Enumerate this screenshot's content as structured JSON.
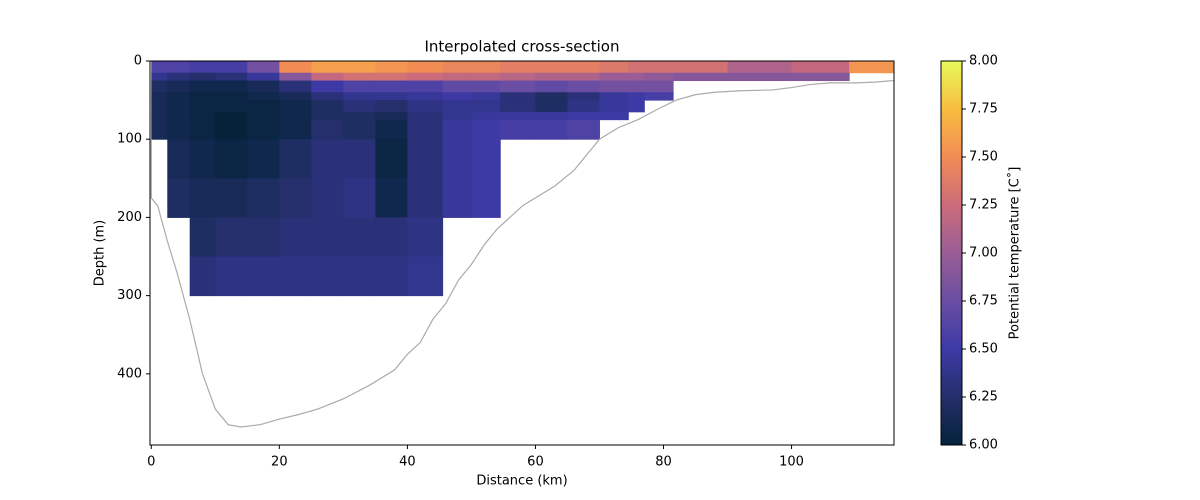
{
  "chart_data": {
    "type": "heatmap",
    "title": "Interpolated cross-section",
    "x_label": "Distance (km)",
    "y_label": "Depth (m)",
    "x_edges": [
      0,
      2.5,
      6,
      10,
      15,
      20,
      25,
      30,
      35,
      40,
      45.5,
      50,
      54.5,
      60,
      65,
      70,
      74.5,
      77,
      81.5,
      90,
      100,
      109,
      116
    ],
    "y_edges": [
      0,
      15,
      25,
      40,
      50,
      65,
      75,
      100,
      150,
      200,
      250,
      300
    ],
    "values": [
      [
        6.6,
        6.6,
        6.55,
        6.55,
        6.8,
        7.5,
        7.6,
        7.6,
        7.55,
        7.5,
        7.45,
        7.45,
        7.4,
        7.4,
        7.4,
        7.35,
        7.3,
        7.3,
        7.3,
        7.1,
        7.2,
        7.55
      ],
      [
        6.4,
        6.3,
        6.25,
        6.3,
        6.45,
        6.9,
        7.2,
        7.3,
        7.3,
        7.25,
        7.2,
        7.2,
        7.15,
        7.1,
        7.1,
        7.0,
        7.0,
        6.95,
        6.9,
        6.9,
        6.9,
        null
      ],
      [
        6.2,
        6.15,
        6.1,
        6.1,
        6.15,
        6.3,
        6.5,
        6.6,
        6.6,
        6.6,
        6.7,
        6.7,
        6.75,
        6.7,
        6.75,
        6.8,
        6.8,
        6.8,
        null,
        null,
        null,
        null
      ],
      [
        6.15,
        6.1,
        6.05,
        6.05,
        6.1,
        6.15,
        6.3,
        6.4,
        6.4,
        6.45,
        6.5,
        6.45,
        6.3,
        6.2,
        6.3,
        6.45,
        6.5,
        6.55,
        null,
        null,
        null,
        null
      ],
      [
        6.15,
        6.1,
        6.05,
        6.05,
        6.05,
        6.1,
        6.2,
        6.3,
        6.25,
        6.35,
        6.4,
        6.4,
        6.3,
        6.2,
        6.35,
        6.45,
        6.5,
        null,
        null,
        null,
        null,
        null
      ],
      [
        6.15,
        6.1,
        6.05,
        6.0,
        6.05,
        6.1,
        6.2,
        6.2,
        6.15,
        6.3,
        6.4,
        6.45,
        6.45,
        6.45,
        6.5,
        6.5,
        null,
        null,
        null,
        null,
        null,
        null
      ],
      [
        6.15,
        6.1,
        6.05,
        6.0,
        6.05,
        6.1,
        6.25,
        6.2,
        6.1,
        6.3,
        6.45,
        6.5,
        6.55,
        6.55,
        6.6,
        null,
        null,
        null,
        null,
        null,
        null,
        null
      ],
      [
        null,
        6.15,
        6.1,
        6.05,
        6.1,
        6.2,
        6.3,
        6.3,
        6.05,
        6.3,
        6.45,
        6.5,
        null,
        null,
        null,
        null,
        null,
        null,
        null,
        null,
        null,
        null
      ],
      [
        null,
        6.2,
        6.15,
        6.15,
        6.2,
        6.25,
        6.3,
        6.35,
        6.1,
        6.3,
        6.45,
        6.5,
        null,
        null,
        null,
        null,
        null,
        null,
        null,
        null,
        null,
        null
      ],
      [
        null,
        null,
        6.2,
        6.25,
        6.25,
        6.3,
        6.3,
        6.3,
        6.3,
        6.35,
        null,
        null,
        null,
        null,
        null,
        null,
        null,
        null,
        null,
        null,
        null,
        null
      ],
      [
        null,
        null,
        6.3,
        6.35,
        6.35,
        6.35,
        6.35,
        6.35,
        6.35,
        6.4,
        null,
        null,
        null,
        null,
        null,
        null,
        null,
        null,
        null,
        null,
        null,
        null
      ]
    ],
    "bathymetry": {
      "color": "#aaaaaa",
      "x": [
        0,
        0,
        1,
        2.5,
        4,
        6,
        8,
        10,
        12,
        14,
        17,
        20,
        23,
        26,
        30,
        34,
        38,
        40,
        42,
        44,
        46,
        48,
        50,
        52,
        54,
        56,
        58,
        60,
        63,
        66,
        68,
        70,
        73,
        76,
        79,
        82,
        85,
        88,
        92,
        97,
        100,
        103,
        106,
        110,
        113,
        116
      ],
      "y": [
        100,
        175,
        185,
        230,
        270,
        330,
        400,
        445,
        465,
        468,
        465,
        458,
        452,
        445,
        432,
        415,
        395,
        375,
        360,
        330,
        310,
        280,
        260,
        235,
        215,
        200,
        185,
        175,
        160,
        140,
        120,
        100,
        85,
        75,
        62,
        50,
        43,
        40,
        38,
        37,
        34,
        30,
        28,
        28,
        27,
        25
      ]
    },
    "xlim": [
      -0.2,
      116
    ],
    "ylim": [
      0,
      491
    ],
    "y_inverted": true,
    "xticks": [
      0,
      20,
      40,
      60,
      80,
      100
    ],
    "yticks": [
      0,
      100,
      200,
      300,
      400
    ],
    "colormap": [
      "#04233a",
      "#252f6c",
      "#3d3aa6",
      "#6a4ea3",
      "#9a5d95",
      "#cc6c7a",
      "#f18c55",
      "#f8bd3f",
      "#e8fa5b"
    ],
    "clim": [
      6,
      8
    ],
    "colorbar_label": "Potential temperature [C˚]",
    "colorbar_ticks": [
      {
        "value": 6,
        "label": "6.00"
      },
      {
        "value": 6.25,
        "label": "6.25"
      },
      {
        "value": 6.5,
        "label": "6.50"
      },
      {
        "value": 6.75,
        "label": "6.75"
      },
      {
        "value": 7,
        "label": "7.00"
      },
      {
        "value": 7.25,
        "label": "7.25"
      },
      {
        "value": 7.5,
        "label": "7.50"
      },
      {
        "value": 7.75,
        "label": "7.75"
      },
      {
        "value": 8,
        "label": "8.00"
      }
    ]
  }
}
